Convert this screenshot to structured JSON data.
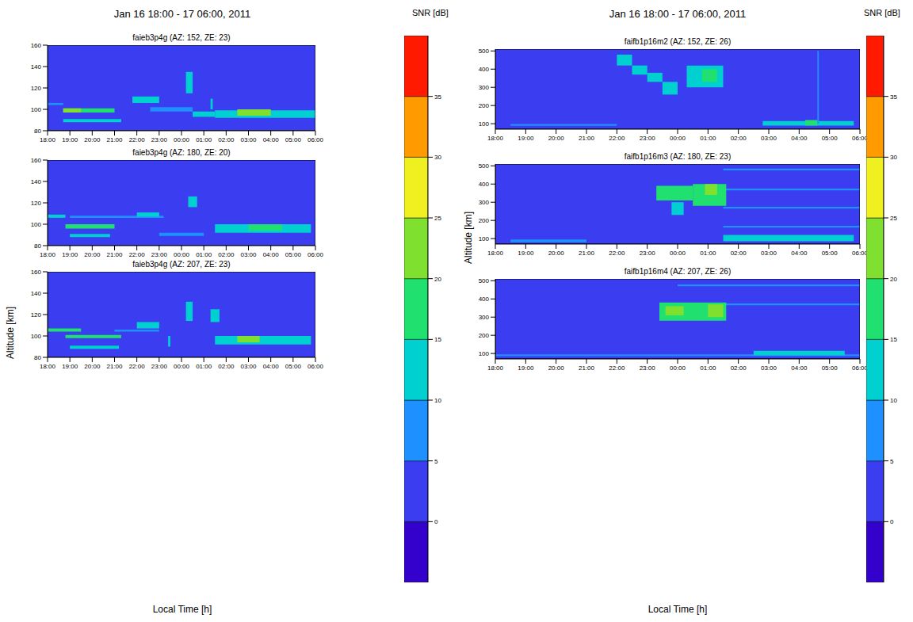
{
  "chart_data": [
    {
      "type": "heatmap",
      "title": "Jan 16 18:00 - 17 06:00, 2011",
      "xlabel": "Local Time [h]",
      "ylabel": "Altitude [km]",
      "colorbar": {
        "label": "SNR [dB]",
        "range": [
          -5,
          40
        ],
        "ticks": [
          0,
          5,
          10,
          15,
          20,
          25,
          30,
          35
        ],
        "colors": [
          "#3300cc",
          "#3a3df0",
          "#1e90ff",
          "#00d0d0",
          "#20e070",
          "#80e030",
          "#f0f020",
          "#ff9a00",
          "#ff1a00"
        ]
      },
      "panels": [
        {
          "title": "faieb3p4g (AZ: 152, ZE: 23)",
          "xlim": [
            18,
            30
          ],
          "xticks": [
            {
              "value": 18,
              "label": "18:00"
            },
            {
              "value": 19,
              "label": "19:00"
            },
            {
              "value": 20,
              "label": "20:00"
            },
            {
              "value": 21,
              "label": "21:00"
            },
            {
              "value": 22,
              "label": "22:00"
            },
            {
              "value": 23,
              "label": "23:00"
            },
            {
              "value": 24,
              "label": "00:00"
            },
            {
              "value": 25,
              "label": "01:00"
            },
            {
              "value": 26,
              "label": "02:00"
            },
            {
              "value": 27,
              "label": "03:00"
            },
            {
              "value": 28,
              "label": "04:00"
            },
            {
              "value": 29,
              "label": "05:00"
            },
            {
              "value": 30,
              "label": "06:00"
            }
          ],
          "ylim": [
            80,
            160
          ],
          "yticks": [
            80,
            100,
            120,
            140,
            160
          ],
          "cells": [
            [
              18,
              30,
              80,
              160,
              2
            ],
            [
              18,
              18.7,
              104,
              106,
              8
            ],
            [
              18.7,
              21.0,
              97,
              101,
              15
            ],
            [
              18.7,
              19.5,
              97,
              101,
              20
            ],
            [
              18.7,
              21.3,
              88,
              91,
              12
            ],
            [
              21.8,
              23.0,
              106,
              112,
              12
            ],
            [
              22.6,
              24.5,
              98,
              102,
              8
            ],
            [
              24.2,
              24.5,
              115,
              135,
              10
            ],
            [
              24.5,
              25.5,
              93,
              98,
              12
            ],
            [
              25.3,
              25.4,
              100,
              110,
              12
            ],
            [
              25.5,
              30,
              92,
              99,
              14
            ],
            [
              26.5,
              28,
              94,
              100,
              20
            ]
          ]
        },
        {
          "title": "faieb3p4g (AZ: 180, ZE: 20)",
          "xlim": [
            18,
            30
          ],
          "xticks": [
            {
              "value": 18,
              "label": "18:00"
            },
            {
              "value": 19,
              "label": "19:00"
            },
            {
              "value": 20,
              "label": "20:00"
            },
            {
              "value": 21,
              "label": "21:00"
            },
            {
              "value": 22,
              "label": "22:00"
            },
            {
              "value": 23,
              "label": "23:00"
            },
            {
              "value": 24,
              "label": "00:00"
            },
            {
              "value": 25,
              "label": "01:00"
            },
            {
              "value": 26,
              "label": "02:00"
            },
            {
              "value": 27,
              "label": "03:00"
            },
            {
              "value": 28,
              "label": "04:00"
            },
            {
              "value": 29,
              "label": "05:00"
            },
            {
              "value": 30,
              "label": "06:00"
            }
          ],
          "ylim": [
            80,
            160
          ],
          "yticks": [
            80,
            100,
            120,
            140,
            160
          ],
          "cells": [
            [
              18,
              30,
              80,
              160,
              2
            ],
            [
              18,
              18.8,
              106,
              109,
              10
            ],
            [
              18.8,
              21.0,
              96,
              100,
              18
            ],
            [
              19.0,
              20.8,
              88,
              91,
              12
            ],
            [
              19,
              23.2,
              106,
              108,
              8
            ],
            [
              22.0,
              23.0,
              107,
              111,
              12
            ],
            [
              23,
              25,
              89,
              92,
              8
            ],
            [
              24.3,
              24.7,
              116,
              126,
              10
            ],
            [
              25.5,
              29.8,
              92,
              100,
              13
            ],
            [
              27,
              28.5,
              94,
              100,
              16
            ]
          ]
        },
        {
          "title": "faieb3p4g (AZ: 207, ZE: 23)",
          "xlim": [
            18,
            30
          ],
          "xticks": [
            {
              "value": 18,
              "label": "18:00"
            },
            {
              "value": 19,
              "label": "19:00"
            },
            {
              "value": 20,
              "label": "20:00"
            },
            {
              "value": 21,
              "label": "21:00"
            },
            {
              "value": 22,
              "label": "22:00"
            },
            {
              "value": 23,
              "label": "23:00"
            },
            {
              "value": 24,
              "label": "00:00"
            },
            {
              "value": 25,
              "label": "01:00"
            },
            {
              "value": 26,
              "label": "02:00"
            },
            {
              "value": 27,
              "label": "03:00"
            },
            {
              "value": 28,
              "label": "04:00"
            },
            {
              "value": 29,
              "label": "05:00"
            },
            {
              "value": 30,
              "label": "06:00"
            }
          ],
          "ylim": [
            80,
            160
          ],
          "yticks": [
            80,
            100,
            120,
            140,
            160
          ],
          "cells": [
            [
              18,
              30,
              80,
              160,
              2
            ],
            [
              18,
              19.5,
              104,
              107,
              15
            ],
            [
              18.8,
              21.3,
              98,
              101,
              15
            ],
            [
              19,
              21.2,
              88,
              91,
              12
            ],
            [
              21,
              23,
              104,
              106,
              8
            ],
            [
              22.0,
              23.0,
              107,
              113,
              12
            ],
            [
              23.4,
              23.5,
              90,
              100,
              12
            ],
            [
              24.2,
              24.5,
              114,
              132,
              10
            ],
            [
              25.3,
              25.7,
              113,
              125,
              14
            ],
            [
              25.5,
              29.8,
              92,
              100,
              14
            ],
            [
              26.5,
              27.5,
              94,
              100,
              20
            ]
          ]
        }
      ]
    },
    {
      "type": "heatmap",
      "title": "Jan 16 18:00 - 17 06:00, 2011",
      "xlabel": "Local Time [h]",
      "ylabel": "Altitude [km]",
      "colorbar": {
        "label": "SNR [dB]",
        "range": [
          -5,
          40
        ],
        "ticks": [
          0,
          5,
          10,
          15,
          20,
          25,
          30,
          35
        ],
        "colors": [
          "#3300cc",
          "#3a3df0",
          "#1e90ff",
          "#00d0d0",
          "#20e070",
          "#80e030",
          "#f0f020",
          "#ff9a00",
          "#ff1a00"
        ]
      },
      "panels": [
        {
          "title": "faifb1p16m2 (AZ: 152, ZE: 26)",
          "xlim": [
            18,
            30
          ],
          "xticks": [
            {
              "value": 18,
              "label": "18:00"
            },
            {
              "value": 19,
              "label": "19:00"
            },
            {
              "value": 20,
              "label": "20:00"
            },
            {
              "value": 21,
              "label": "21:00"
            },
            {
              "value": 22,
              "label": "22:00"
            },
            {
              "value": 23,
              "label": "23:00"
            },
            {
              "value": 24,
              "label": "00:00"
            },
            {
              "value": 25,
              "label": "01:00"
            },
            {
              "value": 26,
              "label": "02:00"
            },
            {
              "value": 27,
              "label": "03:00"
            },
            {
              "value": 28,
              "label": "04:00"
            },
            {
              "value": 29,
              "label": "05:00"
            },
            {
              "value": 30,
              "label": "06:00"
            }
          ],
          "ylim": [
            70,
            510
          ],
          "yticks": [
            100,
            200,
            300,
            400,
            500
          ],
          "cells": [
            [
              18,
              30,
              70,
              510,
              2
            ],
            [
              18.5,
              22,
              88,
              98,
              8
            ],
            [
              22.0,
              22.5,
              420,
              480,
              10
            ],
            [
              22.5,
              23.0,
              370,
              420,
              12
            ],
            [
              23.0,
              23.5,
              330,
              380,
              12
            ],
            [
              23.5,
              24.0,
              260,
              330,
              12
            ],
            [
              24.3,
              25.5,
              300,
              420,
              14
            ],
            [
              24.8,
              25.3,
              330,
              400,
              18
            ],
            [
              26.8,
              29.8,
              90,
              115,
              12
            ],
            [
              28.2,
              28.6,
              90,
              120,
              18
            ],
            [
              28.6,
              28.65,
              100,
              500,
              8
            ]
          ]
        },
        {
          "title": "faifb1p16m3 (AZ: 180, ZE: 23)",
          "xlim": [
            18,
            30
          ],
          "xticks": [
            {
              "value": 18,
              "label": "18:00"
            },
            {
              "value": 19,
              "label": "19:00"
            },
            {
              "value": 20,
              "label": "20:00"
            },
            {
              "value": 21,
              "label": "21:00"
            },
            {
              "value": 22,
              "label": "22:00"
            },
            {
              "value": 23,
              "label": "23:00"
            },
            {
              "value": 24,
              "label": "00:00"
            },
            {
              "value": 25,
              "label": "01:00"
            },
            {
              "value": 26,
              "label": "02:00"
            },
            {
              "value": 27,
              "label": "03:00"
            },
            {
              "value": 28,
              "label": "04:00"
            },
            {
              "value": 29,
              "label": "05:00"
            },
            {
              "value": 30,
              "label": "06:00"
            }
          ],
          "ylim": [
            70,
            510
          ],
          "yticks": [
            100,
            200,
            300,
            400,
            500
          ],
          "cells": [
            [
              18,
              30,
              70,
              510,
              2
            ],
            [
              18.5,
              21,
              80,
              95,
              7
            ],
            [
              25.5,
              30,
              475,
              485,
              7
            ],
            [
              25.5,
              30,
              365,
              375,
              7
            ],
            [
              25.5,
              30,
              265,
              275,
              7
            ],
            [
              25.5,
              30,
              160,
              170,
              7
            ],
            [
              23.3,
              24.5,
              310,
              390,
              15
            ],
            [
              23.8,
              24.2,
              230,
              300,
              12
            ],
            [
              24.5,
              25.6,
              280,
              400,
              16
            ],
            [
              24.9,
              25.3,
              340,
              400,
              20
            ],
            [
              25.5,
              29.8,
              85,
              120,
              12
            ]
          ]
        },
        {
          "title": "faifb1p16m4 (AZ: 207, ZE: 26)",
          "xlim": [
            18,
            30
          ],
          "xticks": [
            {
              "value": 18,
              "label": "18:00"
            },
            {
              "value": 19,
              "label": "19:00"
            },
            {
              "value": 20,
              "label": "20:00"
            },
            {
              "value": 21,
              "label": "21:00"
            },
            {
              "value": 22,
              "label": "22:00"
            },
            {
              "value": 23,
              "label": "23:00"
            },
            {
              "value": 24,
              "label": "00:00"
            },
            {
              "value": 25,
              "label": "01:00"
            },
            {
              "value": 26,
              "label": "02:00"
            },
            {
              "value": 27,
              "label": "03:00"
            },
            {
              "value": 28,
              "label": "04:00"
            },
            {
              "value": 29,
              "label": "05:00"
            },
            {
              "value": 30,
              "label": "06:00"
            }
          ],
          "ylim": [
            70,
            510
          ],
          "yticks": [
            100,
            200,
            300,
            400,
            500
          ],
          "cells": [
            [
              18,
              30,
              70,
              510,
              2
            ],
            [
              18,
              30,
              85,
              95,
              8
            ],
            [
              24,
              30,
              470,
              480,
              7
            ],
            [
              24,
              30,
              365,
              375,
              7
            ],
            [
              23.4,
              25.6,
              280,
              380,
              16
            ],
            [
              23.6,
              24.2,
              310,
              360,
              22
            ],
            [
              25.0,
              25.5,
              300,
              370,
              20
            ],
            [
              26.5,
              29.5,
              90,
              115,
              12
            ]
          ]
        }
      ]
    }
  ]
}
